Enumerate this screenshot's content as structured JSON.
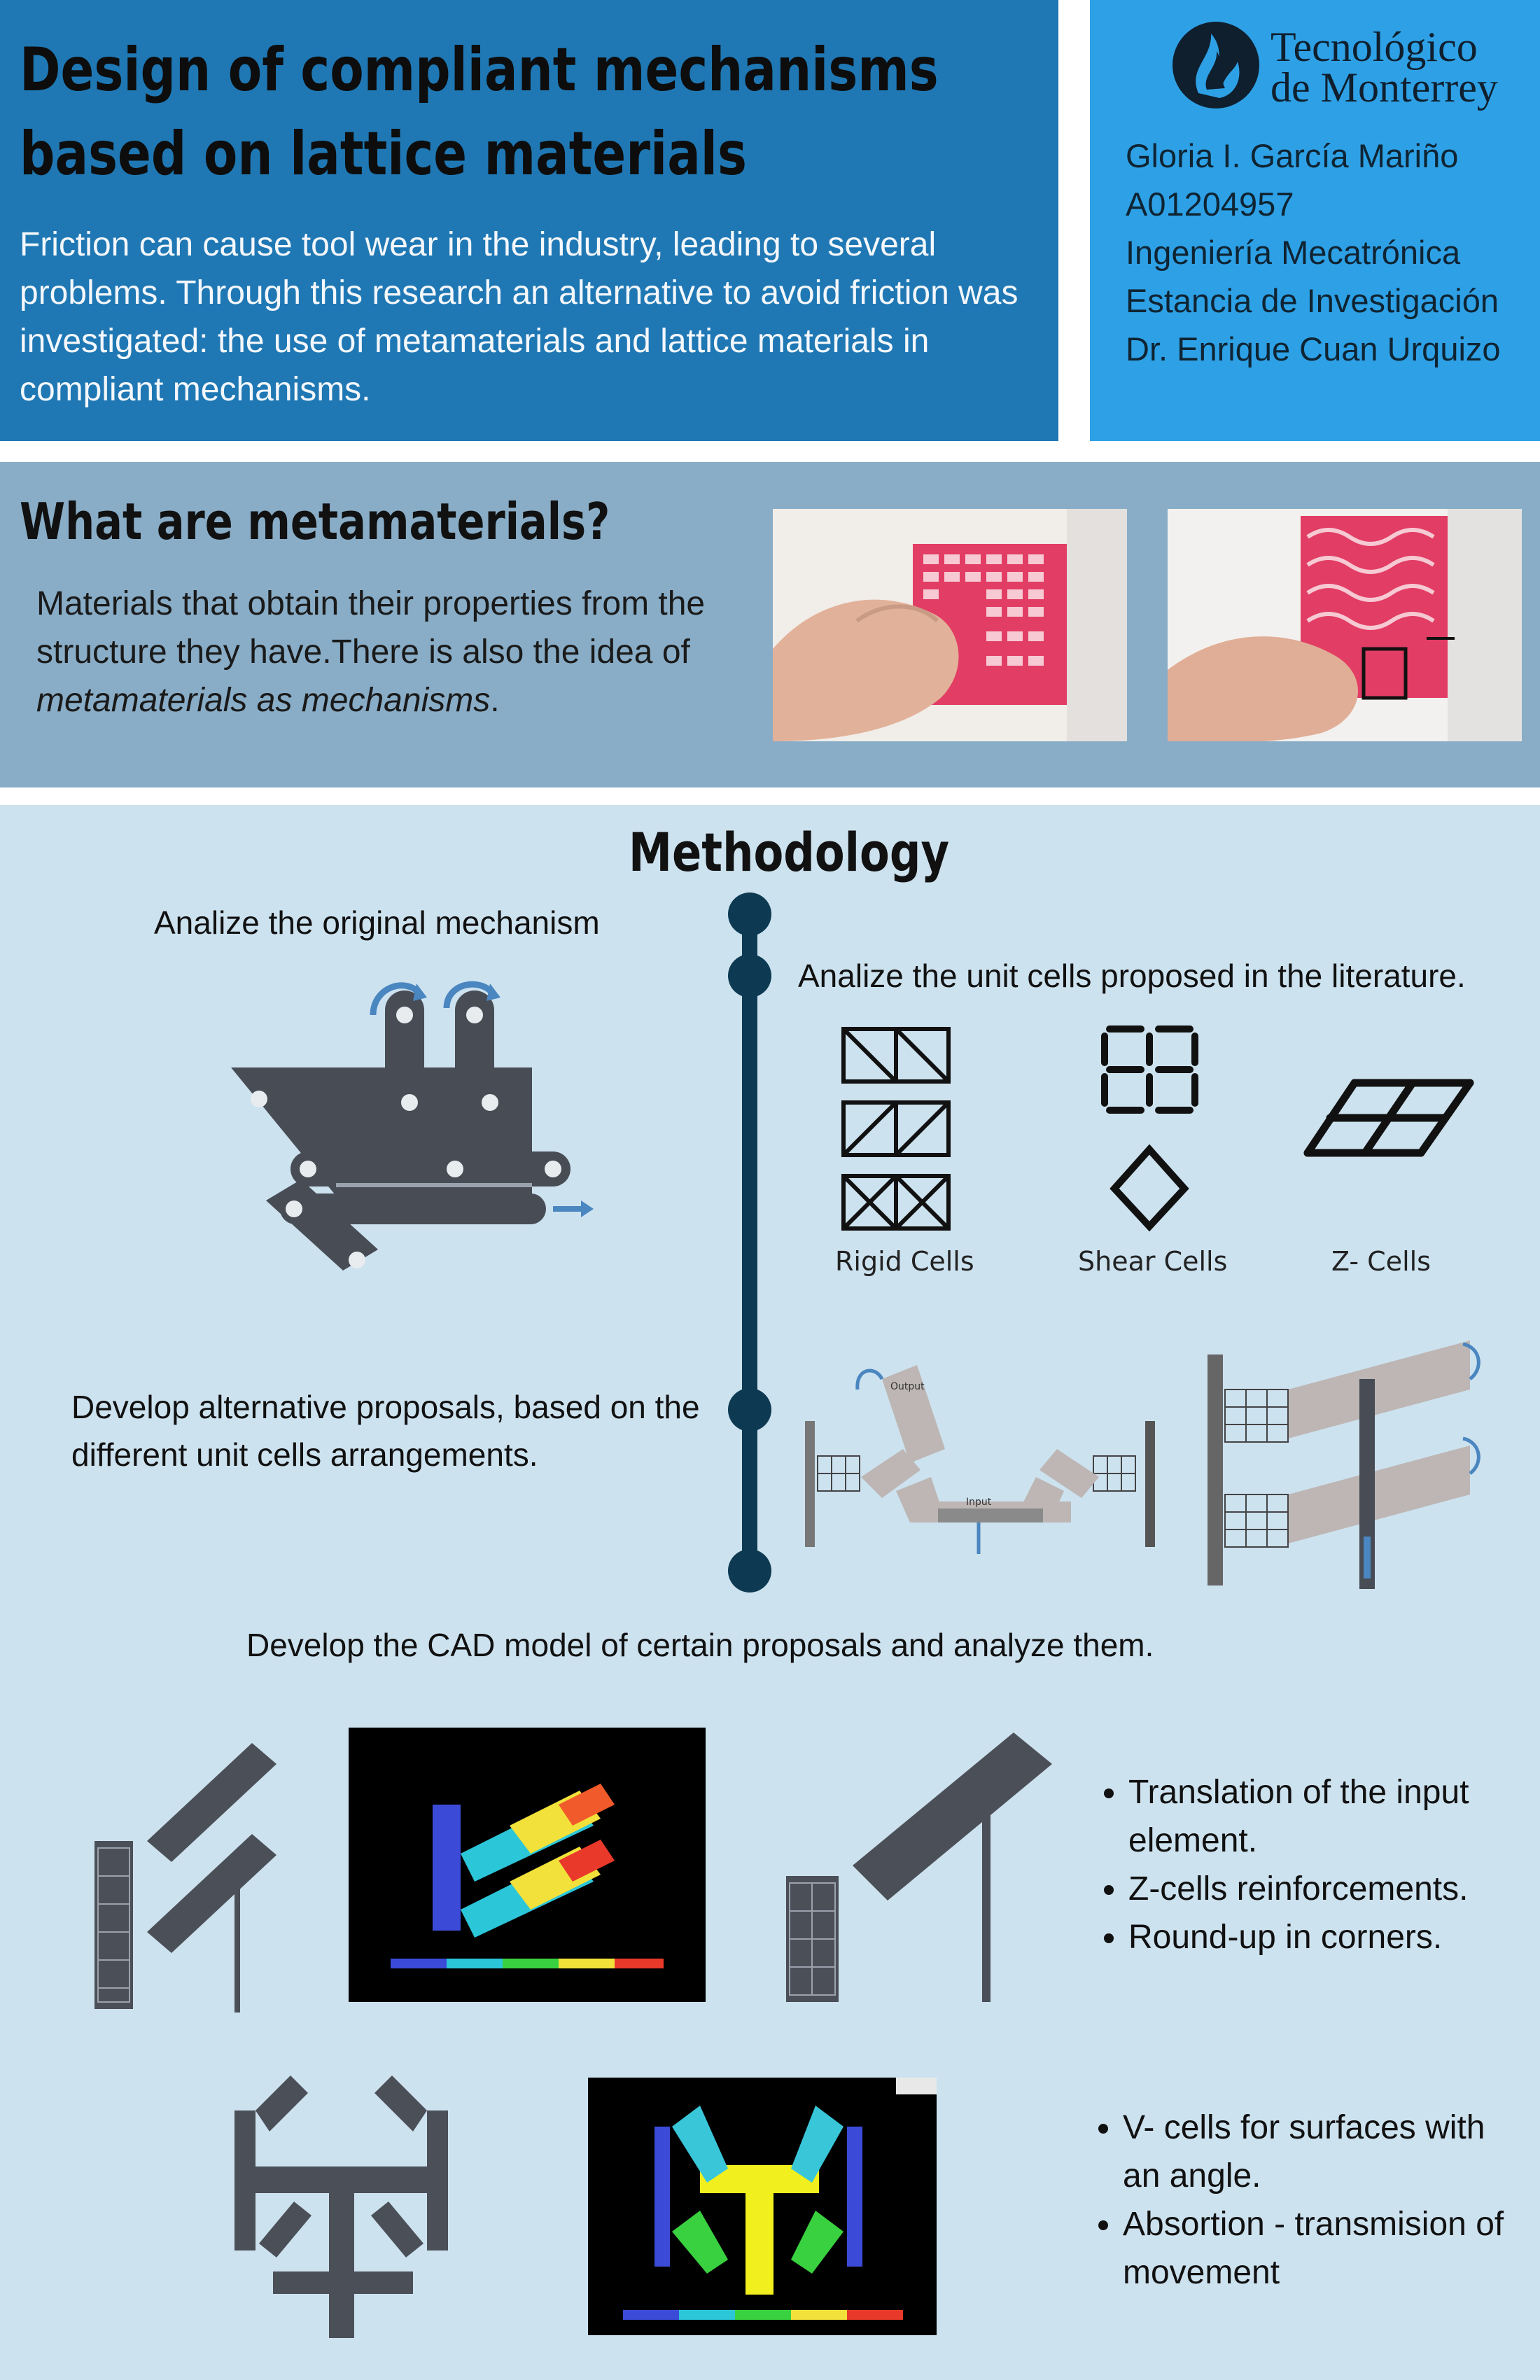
{
  "header": {
    "title_line1": "Design of compliant mechanisms",
    "title_line2": "based on lattice materials",
    "intro": "Friction can cause tool wear in the industry, leading to several problems. Through this research an alternative to avoid friction was investigated: the use of metamaterials and lattice materials in compliant mechanisms."
  },
  "logo": {
    "line1": "Tecnológico",
    "line2": "de Monterrey"
  },
  "author": {
    "name": "Gloria I. García Mariño",
    "id": "A01204957",
    "program": "Ingeniería Mecatrónica",
    "course": "Estancia de Investigación",
    "advisor": "Dr. Enrique Cuan Urquizo"
  },
  "metamaterials": {
    "title": "What are metamaterials?",
    "text": "Materials that obtain their properties from the structure they have.There is also the idea of ",
    "text_italic": "metamaterials as mechanisms",
    "text_end": "."
  },
  "methodology": {
    "title": "Methodology",
    "step1": "Analize the original mechanism",
    "step2": "Analize the unit cells proposed in the literature.",
    "step3": "Develop alternative proposals, based on the different unit cells arrangements.",
    "step4": "Develop the CAD model of certain proposals and analyze them.",
    "cell_labels": [
      "Rigid Cells",
      "Shear Cells",
      "Z- Cells"
    ],
    "diagram_labels": {
      "output": "Output",
      "input": "Input"
    }
  },
  "results": {
    "bullets1": [
      "Translation of the input element.",
      "Z-cells reinforcements.",
      "Round-up in corners."
    ],
    "bullets2": [
      "V- cells for surfaces with an angle.",
      "Absortion - transmision of movement"
    ]
  },
  "colors": {
    "header_left": "#1f78b4",
    "header_right": "#2ea1e6",
    "band": "#89adc7",
    "methodology_bg": "#cde2ef",
    "timeline": "#0d3a52",
    "mechanism": "#474c55",
    "arrow": "#4a86c0",
    "lattice": "#e8385f"
  },
  "icons": [
    "tec-flame-logo",
    "rotation-arrow-icon",
    "timeline-node"
  ]
}
